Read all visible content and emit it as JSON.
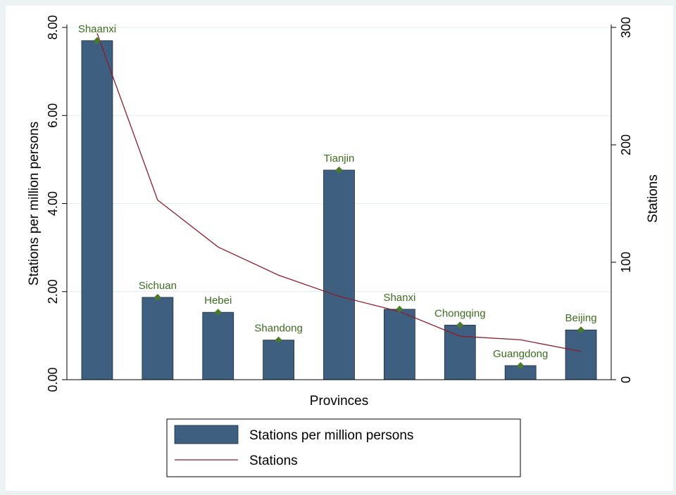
{
  "chart_data": {
    "type": "bar",
    "categories": [
      "Shaanxi",
      "Sichuan",
      "Hebei",
      "Shandong",
      "Tianjin",
      "Shanxi",
      "Chongqing",
      "Guangdong",
      "Beijing"
    ],
    "series": [
      {
        "name": "Stations per million persons",
        "type": "bar",
        "axis": "left",
        "values": [
          7.7,
          1.87,
          1.53,
          0.9,
          4.76,
          1.6,
          1.24,
          0.32,
          1.13
        ],
        "color": "#3e5f80"
      },
      {
        "name": "Stations",
        "type": "line",
        "axis": "right",
        "values": [
          295,
          153,
          113,
          89,
          71,
          58,
          37,
          34,
          24
        ],
        "color": "#8b1c2c"
      }
    ],
    "xlabel": "Provinces",
    "ylabel": "Stations per million persons",
    "y2label": "Stations",
    "ylim": [
      0,
      8
    ],
    "y2lim": [
      0,
      300
    ],
    "yticks": [
      0,
      2,
      4,
      6,
      8
    ],
    "ytick_labels": [
      "0.00",
      "2.00",
      "4.00",
      "6.00",
      "8.00"
    ],
    "y2ticks": [
      0,
      100,
      200,
      300
    ],
    "y2tick_labels": [
      "0",
      "100",
      "200",
      "300"
    ],
    "grid": true,
    "legend_position": "bottom",
    "marker_color": "#4a7a2a"
  }
}
